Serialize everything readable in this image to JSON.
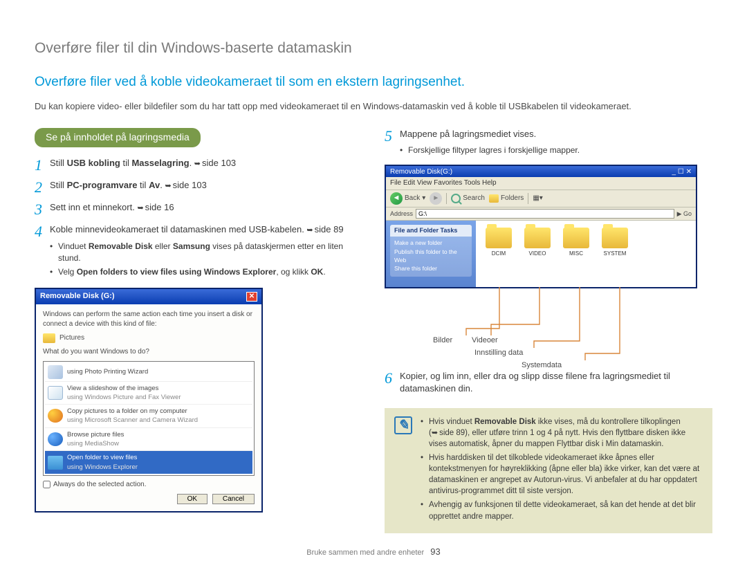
{
  "page": {
    "title": "Overføre filer til din Windows-baserte datamaskin",
    "section": "Overføre filer ved å koble videokameraet til som en ekstern lagringsenhet.",
    "intro": "Du kan kopiere video- eller bildefiler som du har tatt opp med videokameraet til en Windows-datamaskin ved å koble til USBkabelen til videokameraet.",
    "footer_section": "Bruke sammen med andre enheter",
    "page_number": "93"
  },
  "colors": {
    "heading_grey": "#7a7a7a",
    "link_blue": "#0099d8",
    "pill_green": "#7a9a4a",
    "note_bg": "#e6e6c8",
    "note_icon": "#2a78b8",
    "callout_line": "#d8863a",
    "xp_title_start": "#3a6bd8",
    "xp_title_end": "#0a3db0"
  },
  "left": {
    "pill": "Se på innholdet på lagringsmedia",
    "steps": [
      {
        "n": "1",
        "html": "Still <b>USB kobling</b> til <b>Masselagring</b>. <span class='arrow-ref'></span>side 103"
      },
      {
        "n": "2",
        "html": "Still <b>PC-programvare</b> til <b>Av</b>. <span class='arrow-ref'></span>side 103"
      },
      {
        "n": "3",
        "html": "Sett inn et minnekort. <span class='arrow-ref'></span>side 16"
      },
      {
        "n": "4",
        "html": "Koble minnevideokameraet til datamaskinen med USB-kabelen. <span class='arrow-ref'></span>side 89",
        "bullets": [
          "Vinduet <b>Removable Disk</b> eller <b>Samsung</b> vises på dataskjermen etter en liten stund.",
          "Velg <b>Open folders to view files using Windows Explorer</b>, og klikk <b>OK</b>."
        ]
      }
    ]
  },
  "dialog": {
    "title": "Removable Disk (G:)",
    "instruction": "Windows can perform the same action each time you insert a disk or connect a device with this kind of file:",
    "content_type_label": "Pictures",
    "prompt": "What do you want Windows to do?",
    "items": [
      {
        "ico": "ico-pw",
        "title": "using Photo Printing Wizard",
        "sub": ""
      },
      {
        "ico": "ico-fv",
        "title": "View a slideshow of the images",
        "sub": "using Windows Picture and Fax Viewer"
      },
      {
        "ico": "ico-sc",
        "title": "Copy pictures to a folder on my computer",
        "sub": "using Microsoft Scanner and Camera Wizard"
      },
      {
        "ico": "ico-ms",
        "title": "Browse picture files",
        "sub": "using MediaShow"
      },
      {
        "ico": "ico-fo",
        "title": "Open folder to view files",
        "sub": "using Windows Explorer",
        "selected": true
      }
    ],
    "always_label": "Always do the selected action.",
    "ok": "OK",
    "cancel": "Cancel"
  },
  "right": {
    "step5": {
      "n": "5",
      "text": "Mappene på lagringsmediet vises.",
      "bullet": "Forskjellige filtyper lagres i forskjellige mapper."
    },
    "step6": {
      "n": "6",
      "text": "Kopier, og lim inn, eller dra og slipp disse filene fra lagringsmediet til datamaskinen din."
    }
  },
  "explorer": {
    "title": "Removable Disk(G:)",
    "menu": "File   Edit   View   Favorites   Tools   Help",
    "toolbar_back": "Back",
    "toolbar_search": "Search",
    "toolbar_folders": "Folders",
    "address_label": "Address",
    "address_value": "G:\\",
    "side_panel_title": "File and Folder Tasks",
    "side_items": [
      "Make a new folder",
      "Publish this folder to the Web",
      "Share this folder"
    ],
    "folders": [
      "DCIM",
      "VIDEO",
      "MISC",
      "SYSTEM"
    ]
  },
  "callouts": {
    "bilder": "Bilder",
    "videoer": "Videoer",
    "innstilling": "Innstilling data",
    "systemdata": "Systemdata"
  },
  "note": {
    "items": [
      "Hvis vinduet <b>Removable Disk</b> ikke vises, må du kontrollere tilkoplingen (<span class='arrow-ref'></span>side 89), eller utføre trinn 1 og 4 på nytt. Hvis den flyttbare disken ikke vises automatisk, åpner du mappen Flyttbar disk i Min datamaskin.",
      "Hvis harddisken til det tilkoblede videokameraet ikke åpnes eller kontekstmenyen for høyreklikking (åpne eller bla) ikke virker, kan det være at datamaskinen er angrepet av Autorun-virus. Vi anbefaler at du har oppdatert antivirus-programmet ditt til siste versjon.",
      "Avhengig av funksjonen til dette videokameraet, så kan det hende at det blir opprettet andre mapper."
    ]
  }
}
